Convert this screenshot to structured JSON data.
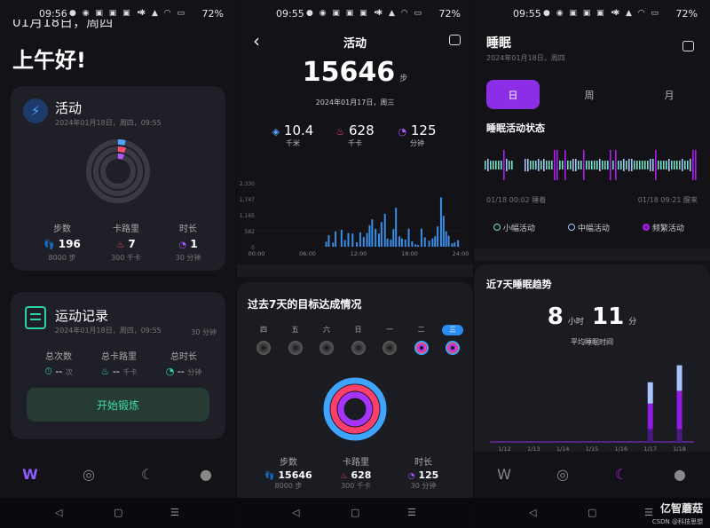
{
  "status": [
    {
      "time": "09:56",
      "battery": "72%"
    },
    {
      "time": "09:55",
      "battery": "72%"
    },
    {
      "time": "09:55",
      "battery": "72%"
    }
  ],
  "p1": {
    "date_partial": "01月18日，周四",
    "greeting": "上午好!",
    "activity": {
      "title": "活动",
      "date": "2024年01月18日，周四，09:55",
      "stats": [
        {
          "label": "步数",
          "value": "196",
          "goal": "8000 步",
          "icon": "footsteps-icon",
          "color": "#4ea6ff"
        },
        {
          "label": "卡路里",
          "value": "7",
          "goal": "300 千卡",
          "icon": "flame-icon",
          "color": "#ff4d6d"
        },
        {
          "label": "时长",
          "value": "1",
          "goal": "30 分钟",
          "icon": "timer-icon",
          "color": "#b057ff"
        }
      ]
    },
    "records": {
      "title": "运动记录",
      "date": "2024年01月18日，周四，09:55",
      "goal": "30 分钟",
      "stats": [
        {
          "label": "总次数",
          "value": "--",
          "unit": "次",
          "color": "#2ed3a0"
        },
        {
          "label": "总卡路里",
          "value": "--",
          "unit": "千卡",
          "color": "#2ed3a0"
        },
        {
          "label": "总时长",
          "value": "--",
          "unit": "分钟",
          "color": "#2ed3a0"
        }
      ],
      "start_btn": "开始锻炼"
    }
  },
  "p2": {
    "title": "活动",
    "steps": "15646",
    "steps_unit": "步",
    "date": "2024年01月17日，周三",
    "summary": [
      {
        "value": "10.4",
        "unit": "千米",
        "icon": "distance-icon",
        "color": "#4ea6ff"
      },
      {
        "value": "628",
        "unit": "千卡",
        "icon": "flame-icon",
        "color": "#ff4d6d"
      },
      {
        "value": "125",
        "unit": "分钟",
        "icon": "timer-icon",
        "color": "#b057ff"
      }
    ],
    "week_title": "过去7天的目标达成情况",
    "weekdays": [
      "四",
      "五",
      "六",
      "日",
      "一",
      "二",
      "三"
    ],
    "bottom": [
      {
        "label": "步数",
        "value": "15646",
        "goal": "8000 步",
        "color": "#4ea6ff"
      },
      {
        "label": "卡路里",
        "value": "628",
        "goal": "300 千卡",
        "color": "#ff4d6d"
      },
      {
        "label": "时长",
        "value": "125",
        "goal": "30 分钟",
        "color": "#b057ff"
      }
    ]
  },
  "chart_data": [
    {
      "type": "bar",
      "series": [
        {
          "values": [
            0,
            0,
            0,
            0,
            0,
            0,
            0,
            0,
            0,
            0,
            0,
            0,
            0,
            0,
            0,
            0,
            0,
            0,
            0,
            0,
            0,
            0,
            0,
            0,
            0,
            0,
            0,
            0,
            0,
            0,
            0,
            0,
            0,
            0,
            0,
            0,
            0,
            0,
            0,
            0,
            0,
            0,
            0,
            0,
            0,
            0,
            0,
            0,
            0,
            0,
            0,
            0,
            0,
            0,
            0,
            0,
            0,
            0,
            0,
            0,
            0,
            0,
            0,
            0,
            0,
            0,
            0,
            0,
            0,
            0,
            0,
            0,
            0,
            0,
            0,
            0,
            0,
            0,
            0,
            0,
            0,
            0,
            0,
            0,
            0,
            0,
            0,
            0,
            0,
            0,
            0,
            0,
            0,
            0,
            0,
            0,
            0,
            0,
            0,
            0,
            0,
            0,
            0,
            0,
            0,
            0,
            0,
            0,
            0,
            0,
            0,
            0,
            0,
            0,
            0,
            0,
            0,
            0,
            0,
            0,
            0,
            0,
            0,
            0,
            0,
            0,
            0,
            0,
            0,
            0,
            0,
            0,
            0,
            0,
            0,
            0,
            0,
            0,
            0,
            0,
            0,
            0,
            0,
            0,
            0,
            0,
            0,
            0,
            0,
            0,
            0,
            0,
            0,
            0,
            0,
            0,
            0,
            0,
            0,
            0,
            0,
            0,
            0,
            0,
            0,
            0,
            0,
            0,
            0,
            0,
            0,
            0,
            0,
            0,
            0,
            0,
            0,
            0,
            0,
            0,
            0,
            0,
            0,
            0,
            0,
            0,
            0,
            0,
            0,
            0,
            0,
            0,
            0,
            0,
            0,
            0,
            0,
            0,
            0,
            0,
            0,
            0,
            0,
            0,
            0,
            0,
            0,
            0,
            0,
            0,
            0,
            0,
            0,
            0,
            0,
            0,
            0,
            0,
            0,
            0,
            0,
            0,
            0,
            0,
            0,
            0,
            0,
            0,
            0,
            0,
            0,
            0,
            0,
            0,
            0,
            0,
            0,
            0,
            0,
            0,
            0,
            0,
            0,
            0,
            0,
            0,
            0,
            0,
            0,
            0,
            0,
            0,
            0,
            0,
            0,
            0,
            0,
            0,
            0,
            0,
            0,
            0,
            0,
            0,
            0,
            0,
            0,
            0,
            0,
            0,
            0,
            0,
            0,
            0,
            0,
            0,
            0,
            0,
            0,
            0,
            0,
            0,
            0,
            0
          ]
        }
      ],
      "bars": [
        {
          "x": 8.2,
          "y": 180
        },
        {
          "x": 8.5,
          "y": 420
        },
        {
          "x": 9.0,
          "y": 150
        },
        {
          "x": 9.3,
          "y": 560
        },
        {
          "x": 10.0,
          "y": 620
        },
        {
          "x": 10.4,
          "y": 240
        },
        {
          "x": 10.8,
          "y": 500
        },
        {
          "x": 11.3,
          "y": 480
        },
        {
          "x": 11.8,
          "y": 160
        },
        {
          "x": 12.2,
          "y": 520
        },
        {
          "x": 12.6,
          "y": 350
        },
        {
          "x": 13.0,
          "y": 500
        },
        {
          "x": 13.3,
          "y": 780
        },
        {
          "x": 13.6,
          "y": 1000
        },
        {
          "x": 14.0,
          "y": 650
        },
        {
          "x": 14.4,
          "y": 480
        },
        {
          "x": 14.7,
          "y": 900
        },
        {
          "x": 15.1,
          "y": 1200
        },
        {
          "x": 15.4,
          "y": 300
        },
        {
          "x": 15.8,
          "y": 260
        },
        {
          "x": 16.1,
          "y": 640
        },
        {
          "x": 16.4,
          "y": 1420
        },
        {
          "x": 16.8,
          "y": 380
        },
        {
          "x": 17.1,
          "y": 300
        },
        {
          "x": 17.5,
          "y": 260
        },
        {
          "x": 17.9,
          "y": 660
        },
        {
          "x": 18.3,
          "y": 200
        },
        {
          "x": 18.7,
          "y": 90
        },
        {
          "x": 19.0,
          "y": 60
        },
        {
          "x": 19.4,
          "y": 660
        },
        {
          "x": 19.8,
          "y": 340
        },
        {
          "x": 20.3,
          "y": 220
        },
        {
          "x": 20.7,
          "y": 300
        },
        {
          "x": 21.0,
          "y": 380
        },
        {
          "x": 21.3,
          "y": 740
        },
        {
          "x": 21.7,
          "y": 1800
        },
        {
          "x": 22.0,
          "y": 1120
        },
        {
          "x": 22.3,
          "y": 560
        },
        {
          "x": 22.6,
          "y": 400
        },
        {
          "x": 23.0,
          "y": 120
        },
        {
          "x": 23.3,
          "y": 160
        },
        {
          "x": 23.7,
          "y": 240
        }
      ],
      "xlim": [
        0,
        24
      ],
      "ylim": [
        0,
        2330
      ],
      "yticks": [
        "2,330",
        "1,747",
        "1,165",
        "582",
        "0"
      ],
      "xticks": [
        "00:00",
        "06:00",
        "12:00",
        "18:00",
        "24:00"
      ]
    },
    {
      "type": "bar",
      "title": "近7天睡眠趋势",
      "categories": [
        "1/12",
        "1/13",
        "1/14",
        "1/15",
        "1/16",
        "1/17",
        "1/18"
      ],
      "stages": [
        "小幅活动",
        "中幅活动",
        "频繁活动"
      ],
      "series": [
        {
          "name": "频繁活动",
          "values": [
            0,
            0,
            0,
            0,
            0,
            15,
            15
          ],
          "color": "#4a1a80"
        },
        {
          "name": "小幅活动",
          "values": [
            0,
            0,
            0,
            0,
            0,
            30,
            45
          ],
          "color": "#8f1ce0"
        },
        {
          "name": "中幅活动",
          "values": [
            0,
            0,
            0,
            0,
            0,
            25,
            30
          ],
          "color": "#a8c4ff"
        }
      ],
      "ylim": [
        0,
        100
      ]
    }
  ],
  "p3": {
    "title": "睡眠",
    "date": "2024年01月18日，周四",
    "tabs": [
      "日",
      "周",
      "月"
    ],
    "status_title": "睡眠活动状态",
    "start": "01/18 00:02 睡着",
    "end": "01/18 09:21 醒来",
    "legend": [
      {
        "label": "小幅活动",
        "color": "#6fe0c8"
      },
      {
        "label": "中幅活动",
        "color": "#a8c4ff"
      },
      {
        "label": "频繁活动",
        "color": "#b21cf0"
      }
    ],
    "trend_title": "近7天睡眠趋势",
    "avg_hours": "8",
    "avg_hours_unit": "小时",
    "avg_min": "11",
    "avg_min_unit": "分",
    "avg_label": "平均睡眠时间",
    "watermark": "亿智蘑菇",
    "watermark2": "CSDN @科技思想"
  }
}
